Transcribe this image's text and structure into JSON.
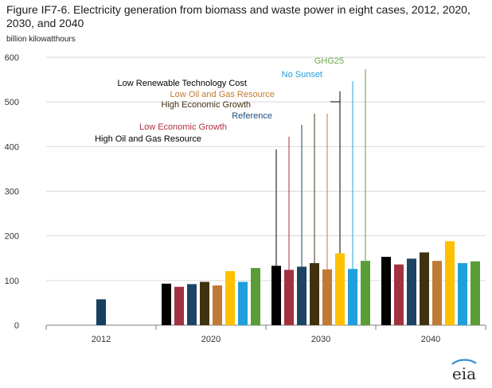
{
  "title": "Figure IF7-6. Electricity generation from biomass and waste power in eight cases, 2012, 2020, 2030, and 2040",
  "units_label": "billion kilowatthours",
  "logo_text": "eia",
  "chart_data": {
    "type": "bar",
    "title": "Figure IF7-6. Electricity generation from biomass and waste power in eight cases, 2012, 2020, 2030, and 2040",
    "ylabel": "billion kilowatthours",
    "ylim": [
      0,
      600
    ],
    "yticks": [
      0,
      100,
      200,
      300,
      400,
      500,
      600
    ],
    "categories": [
      "2012",
      "2020",
      "2030",
      "2040"
    ],
    "history": {
      "category": "2012",
      "value": 58,
      "color": "#17405f"
    },
    "series": [
      {
        "name": "High Oil and Gas Resource",
        "color": "#000000",
        "values": [
          null,
          93,
          133,
          153
        ],
        "label_color": "#000000"
      },
      {
        "name": "Low Economic Growth",
        "color": "#a33240",
        "values": [
          null,
          86,
          124,
          136
        ],
        "label_color": "#b0303e"
      },
      {
        "name": "Reference",
        "color": "#1d4464",
        "values": [
          null,
          92,
          131,
          149
        ],
        "label_color": "#1d4e7a"
      },
      {
        "name": "High Economic Growth",
        "color": "#3f3210",
        "values": [
          null,
          97,
          139,
          163
        ],
        "label_color": "#3c3010"
      },
      {
        "name": "Low Oil and Gas Resource",
        "color": "#c07a36",
        "values": [
          null,
          89,
          125,
          144
        ],
        "label_color": "#c47a30"
      },
      {
        "name": "Low Renewable Technology  Cost",
        "color": "#ffc000",
        "values": [
          null,
          121,
          161,
          188
        ],
        "label_color": "#000000"
      },
      {
        "name": "No Sunset",
        "color": "#1fa0dc",
        "values": [
          null,
          97,
          126,
          139
        ],
        "label_color": "#1fa0dc"
      },
      {
        "name": "GHG25",
        "color": "#5a9d37",
        "values": [
          null,
          128,
          144,
          143
        ],
        "label_color": "#6aaa4a"
      }
    ],
    "grid": true,
    "legend": "callouts above 2030 bars"
  }
}
